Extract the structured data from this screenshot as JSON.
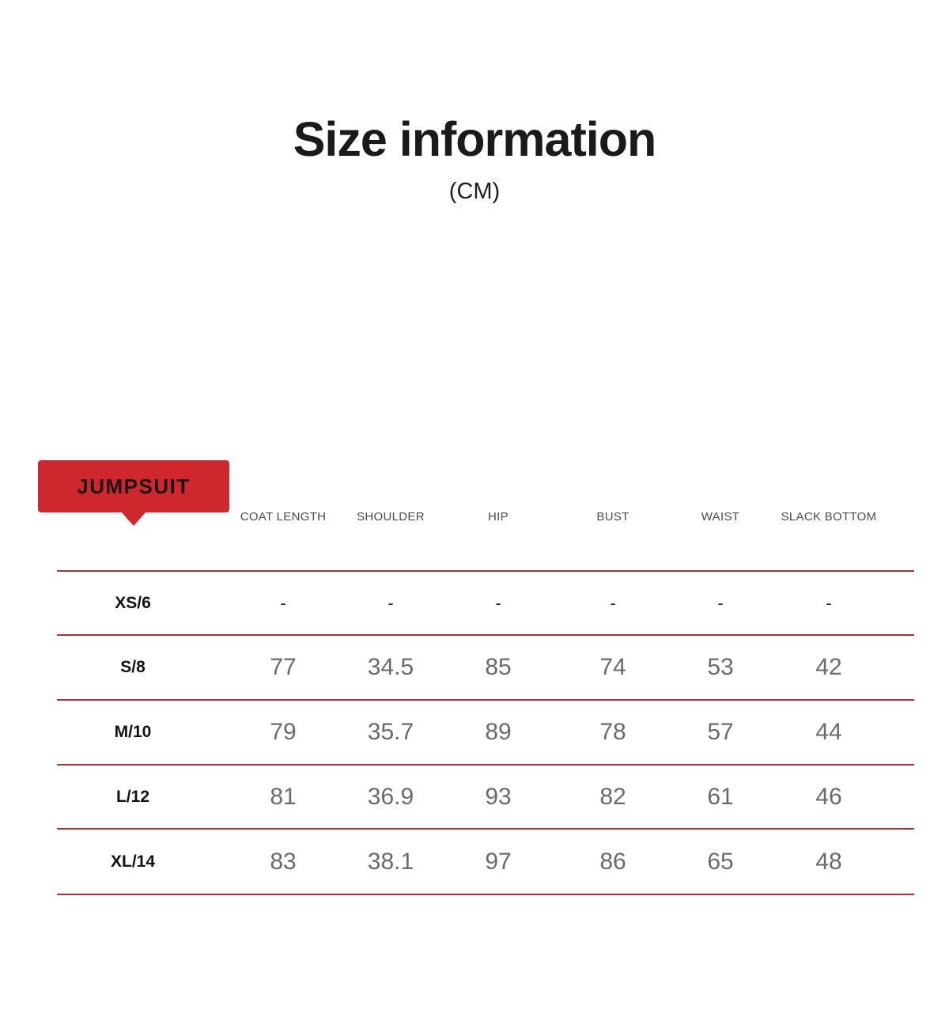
{
  "header": {
    "title": "Size information",
    "unit": "(CM)"
  },
  "badge": {
    "label": "JUMPSUIT"
  },
  "table": {
    "columns": [
      "COAT LENGTH",
      "SHOULDER",
      "HIP",
      "BUST",
      "WAIST",
      "SLACK BOTTOM"
    ],
    "rows": [
      {
        "size": "XS/6",
        "values": [
          "-",
          "-",
          "-",
          "-",
          "-",
          "-"
        ]
      },
      {
        "size": "S/8",
        "values": [
          "77",
          "34.5",
          "85",
          "74",
          "53",
          "42"
        ]
      },
      {
        "size": "M/10",
        "values": [
          "79",
          "35.7",
          "89",
          "78",
          "57",
          "44"
        ]
      },
      {
        "size": "L/12",
        "values": [
          "81",
          "36.9",
          "93",
          "82",
          "61",
          "46"
        ]
      },
      {
        "size": "XL/14",
        "values": [
          "83",
          "38.1",
          "97",
          "86",
          "65",
          "48"
        ]
      }
    ]
  },
  "colors": {
    "badge_red": "#ce272e",
    "divider_red": "#a93236",
    "value_gray": "#6a6a6a"
  }
}
